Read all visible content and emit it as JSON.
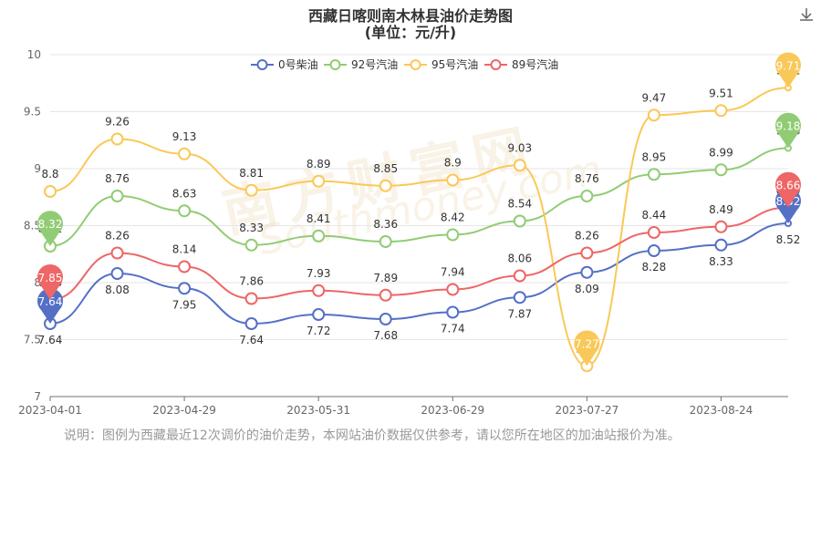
{
  "title": {
    "line1": "西藏日喀则南木林县油价走势图",
    "line2": "(单位：元/升)"
  },
  "note": "说明：图例为西藏最近12次调价的油价走势，本网站油价数据仅供参考，请以您所在地区的加油站报价为准。",
  "watermark": {
    "cn": "南方财富网",
    "en": "Southmoney.com"
  },
  "toolbar": {
    "download_icon": "download-icon"
  },
  "chart_data": {
    "type": "line",
    "smooth": true,
    "ylim": [
      7,
      10
    ],
    "yticks": [
      7,
      7.5,
      8,
      8.5,
      9,
      9.5,
      10
    ],
    "ytick_labels": [
      "7",
      "7.5",
      "8",
      "8.5",
      "9",
      "9.5",
      "10"
    ],
    "x": [
      "2023-04-01",
      "2023-04-15",
      "2023-04-29",
      "2023-05-16",
      "2023-05-31",
      "2023-06-14",
      "2023-06-29",
      "2023-07-13",
      "2023-07-27",
      "2023-08-09",
      "2023-08-24",
      "2023-09-07"
    ],
    "xtick_labels": [
      "2023-04-01",
      "2023-04-29",
      "2023-05-31",
      "2023-06-29",
      "2023-07-27",
      "2023-08-24"
    ],
    "xtick_index": [
      0,
      2,
      4,
      6,
      8,
      10
    ],
    "grid": true,
    "legend_position": "top-center",
    "series": [
      {
        "name": "0号柴油",
        "color": "#5470c6",
        "values": [
          7.64,
          8.08,
          7.95,
          7.64,
          7.72,
          7.68,
          7.74,
          7.87,
          8.09,
          8.28,
          8.33,
          8.52
        ]
      },
      {
        "name": "92号汽油",
        "color": "#91cc75",
        "values": [
          8.32,
          8.76,
          8.63,
          8.33,
          8.41,
          8.36,
          8.42,
          8.54,
          8.76,
          8.95,
          8.99,
          9.18
        ]
      },
      {
        "name": "95号汽油",
        "color": "#fac858",
        "values": [
          8.8,
          9.26,
          9.13,
          8.81,
          8.89,
          8.85,
          8.9,
          9.03,
          7.27,
          9.47,
          9.51,
          9.71
        ]
      },
      {
        "name": "89号汽油",
        "color": "#ee6666",
        "values": [
          7.85,
          8.26,
          8.14,
          7.86,
          7.93,
          7.89,
          7.94,
          8.06,
          8.26,
          8.44,
          8.49,
          8.66
        ]
      }
    ],
    "markers": [
      {
        "series": 0,
        "type": "min",
        "value": 7.64,
        "index": 0
      },
      {
        "series": 0,
        "type": "max",
        "value": 8.52,
        "index": 11
      },
      {
        "series": 1,
        "type": "min",
        "value": 8.32,
        "index": 0
      },
      {
        "series": 1,
        "type": "max",
        "value": 9.18,
        "index": 11
      },
      {
        "series": 2,
        "type": "min",
        "value": 7.27,
        "index": 8
      },
      {
        "series": 2,
        "type": "max",
        "value": 9.71,
        "index": 11
      },
      {
        "series": 3,
        "type": "min",
        "value": 7.85,
        "index": 0
      },
      {
        "series": 3,
        "type": "max",
        "value": 8.66,
        "index": 11
      }
    ]
  }
}
